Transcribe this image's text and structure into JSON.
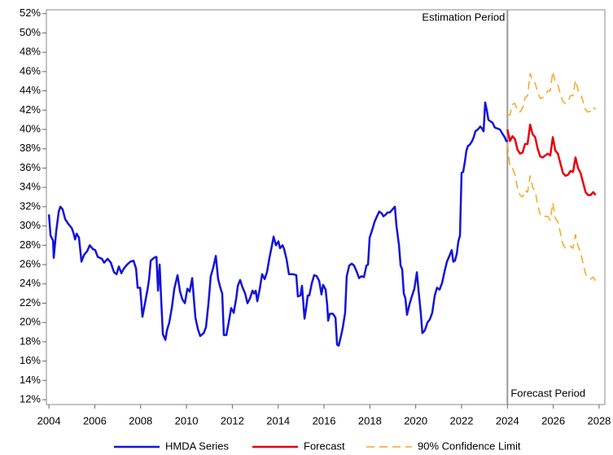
{
  "chart_data": {
    "type": "line",
    "xlim": [
      2003.89,
      2028.25
    ],
    "xticks": [
      2004,
      2006,
      2008,
      2010,
      2012,
      2014,
      2016,
      2018,
      2020,
      2022,
      2024,
      2026,
      2028
    ],
    "ylim": [
      11.5,
      52.4
    ],
    "yticks": [
      {
        "value": 12,
        "label": "12%"
      },
      {
        "value": 14,
        "label": "14%"
      },
      {
        "value": 16,
        "label": "16%"
      },
      {
        "value": 18,
        "label": "18%"
      },
      {
        "value": 20,
        "label": "20%"
      },
      {
        "value": 22,
        "label": "22%"
      },
      {
        "value": 24,
        "label": "24%"
      },
      {
        "value": 26,
        "label": "26%"
      },
      {
        "value": 28,
        "label": "28%"
      },
      {
        "value": 30,
        "label": "30%"
      },
      {
        "value": 32,
        "label": "32%"
      },
      {
        "value": 34,
        "label": "34%"
      },
      {
        "value": 36,
        "label": "36%"
      },
      {
        "value": 38,
        "label": "38%"
      },
      {
        "value": 40,
        "label": "40%"
      },
      {
        "value": 42,
        "label": "42%"
      },
      {
        "value": 44,
        "label": "44%"
      },
      {
        "value": 46,
        "label": "46%"
      },
      {
        "value": 48,
        "label": "48%"
      },
      {
        "value": 50,
        "label": "50%"
      },
      {
        "value": 52,
        "label": "52%"
      }
    ],
    "legend": "bottom",
    "divider_x": 2024,
    "annotations": [
      {
        "text": "Estimation Period",
        "x": 2024
      },
      {
        "text": "Forecast Period",
        "x": 2024
      }
    ],
    "series": [
      {
        "name": "HMDA Series",
        "color": "#1414d8",
        "x": [
          2004.0,
          2004.07,
          2004.18,
          2004.21,
          2004.32,
          2004.43,
          2004.5,
          2004.6,
          2004.71,
          2004.85,
          2004.99,
          2005.07,
          2005.14,
          2005.21,
          2005.31,
          2005.42,
          2005.53,
          2005.67,
          2005.78,
          2005.92,
          2006.02,
          2006.13,
          2006.31,
          2006.41,
          2006.56,
          2006.7,
          2006.84,
          2006.95,
          2007.05,
          2007.16,
          2007.27,
          2007.41,
          2007.55,
          2007.69,
          2007.8,
          2007.87,
          2007.98,
          2008.08,
          2008.19,
          2008.3,
          2008.37,
          2008.44,
          2008.58,
          2008.69,
          2008.76,
          2008.83,
          2008.9,
          2008.97,
          2009.08,
          2009.15,
          2009.25,
          2009.36,
          2009.47,
          2009.61,
          2009.72,
          2009.82,
          2009.93,
          2010.04,
          2010.14,
          2010.25,
          2010.32,
          2010.39,
          2010.5,
          2010.6,
          2010.75,
          2010.85,
          2010.96,
          2011.06,
          2011.17,
          2011.28,
          2011.38,
          2011.49,
          2011.56,
          2011.63,
          2011.74,
          2011.85,
          2011.95,
          2012.06,
          2012.17,
          2012.24,
          2012.34,
          2012.45,
          2012.56,
          2012.66,
          2012.77,
          2012.88,
          2012.95,
          2013.02,
          2013.09,
          2013.19,
          2013.3,
          2013.41,
          2013.51,
          2013.62,
          2013.73,
          2013.8,
          2013.9,
          2014.01,
          2014.08,
          2014.19,
          2014.26,
          2014.37,
          2014.47,
          2014.65,
          2014.79,
          2014.86,
          2014.97,
          2015.04,
          2015.15,
          2015.22,
          2015.29,
          2015.36,
          2015.47,
          2015.57,
          2015.68,
          2015.79,
          2015.89,
          2015.96,
          2016.07,
          2016.14,
          2016.18,
          2016.25,
          2016.39,
          2016.5,
          2016.57,
          2016.64,
          2016.74,
          2016.82,
          2016.92,
          2016.99,
          2017.1,
          2017.21,
          2017.31,
          2017.42,
          2017.53,
          2017.63,
          2017.74,
          2017.85,
          2017.92,
          2017.99,
          2018.09,
          2018.2,
          2018.31,
          2018.41,
          2018.52,
          2018.59,
          2018.7,
          2018.77,
          2018.87,
          2018.98,
          2019.09,
          2019.16,
          2019.27,
          2019.34,
          2019.41,
          2019.48,
          2019.55,
          2019.62,
          2019.73,
          2019.83,
          2019.94,
          2020.05,
          2020.12,
          2020.22,
          2020.29,
          2020.4,
          2020.51,
          2020.61,
          2020.72,
          2020.83,
          2020.93,
          2021.04,
          2021.15,
          2021.25,
          2021.36,
          2021.47,
          2021.57,
          2021.64,
          2021.71,
          2021.79,
          2021.86,
          2021.93,
          2022.0,
          2022.07,
          2022.14,
          2022.21,
          2022.28,
          2022.35,
          2022.46,
          2022.53,
          2022.6,
          2022.71,
          2022.82,
          2022.89,
          2022.96,
          2023.03,
          2023.1,
          2023.17,
          2023.28,
          2023.35,
          2023.45,
          2023.56,
          2023.67,
          2023.77,
          2023.88,
          2023.95,
          2024.02
        ],
        "values": [
          31.2,
          29.0,
          28.5,
          26.7,
          29.5,
          31.5,
          32.0,
          31.7,
          30.7,
          30.2,
          29.8,
          29.3,
          28.6,
          29.2,
          28.8,
          26.3,
          27.0,
          27.4,
          28.0,
          27.6,
          27.5,
          26.8,
          26.6,
          26.2,
          26.6,
          26.2,
          25.2,
          25.0,
          25.8,
          25.1,
          25.6,
          26.0,
          26.3,
          26.4,
          25.6,
          23.6,
          23.6,
          20.6,
          22.0,
          23.4,
          24.5,
          26.4,
          26.7,
          26.8,
          23.3,
          26.0,
          22.2,
          18.8,
          18.2,
          19.2,
          20.0,
          21.5,
          23.5,
          24.9,
          23.2,
          22.4,
          22.0,
          23.5,
          23.2,
          24.6,
          22.5,
          20.5,
          19.3,
          18.6,
          18.9,
          19.5,
          22.0,
          24.8,
          25.7,
          26.9,
          24.5,
          23.5,
          23.0,
          18.7,
          18.7,
          20.1,
          21.5,
          21.0,
          22.5,
          23.8,
          24.4,
          23.6,
          23.0,
          22.0,
          22.5,
          23.3,
          23.0,
          23.3,
          22.2,
          23.4,
          25.0,
          24.5,
          25.2,
          26.7,
          28.0,
          28.9,
          28.0,
          28.4,
          27.7,
          28.0,
          27.6,
          26.5,
          25.0,
          25.0,
          24.9,
          22.7,
          22.8,
          23.8,
          20.4,
          21.5,
          22.8,
          22.8,
          24.1,
          24.9,
          24.8,
          24.3,
          22.9,
          23.9,
          23.4,
          21.8,
          20.2,
          20.9,
          20.9,
          20.5,
          17.7,
          17.6,
          18.6,
          19.5,
          21.0,
          24.8,
          25.9,
          26.1,
          25.9,
          25.3,
          24.6,
          24.8,
          24.7,
          25.9,
          26.0,
          28.8,
          29.5,
          30.4,
          31.0,
          31.5,
          31.3,
          31.0,
          31.2,
          31.4,
          31.4,
          31.7,
          32.0,
          30.0,
          28.0,
          25.9,
          25.5,
          23.0,
          22.5,
          20.8,
          21.9,
          22.7,
          23.5,
          25.2,
          23.4,
          21.0,
          18.9,
          19.2,
          20.0,
          20.3,
          21.0,
          22.8,
          23.6,
          23.4,
          24.1,
          25.2,
          26.3,
          26.9,
          27.5,
          26.3,
          26.4,
          27.1,
          28.4,
          29.0,
          35.5,
          35.6,
          36.6,
          37.8,
          38.3,
          38.4,
          38.8,
          39.2,
          39.8,
          40.0,
          40.3,
          40.1,
          39.8,
          42.8,
          42.0,
          41.0,
          40.8,
          40.7,
          40.2,
          40.1,
          40.0,
          39.6,
          39.2,
          38.8,
          38.8
        ]
      },
      {
        "name": "Forecast",
        "color": "#e8000b",
        "x": [
          2024.0,
          2024.11,
          2024.22,
          2024.33,
          2024.44,
          2024.55,
          2024.66,
          2024.77,
          2024.88,
          2024.99,
          2025.1,
          2025.21,
          2025.32,
          2025.43,
          2025.54,
          2025.65,
          2025.76,
          2025.87,
          2025.98,
          2026.09,
          2026.2,
          2026.31,
          2026.42,
          2026.53,
          2026.64,
          2026.75,
          2026.86,
          2026.97,
          2027.08,
          2027.19,
          2027.3,
          2027.41,
          2027.52,
          2027.63,
          2027.74,
          2027.85
        ],
        "values": [
          40.0,
          38.8,
          39.3,
          39.0,
          37.9,
          37.5,
          37.6,
          38.5,
          38.5,
          40.5,
          39.5,
          39.2,
          38.0,
          37.2,
          37.1,
          37.3,
          37.5,
          37.3,
          39.2,
          37.8,
          37.5,
          36.5,
          35.5,
          35.2,
          35.3,
          35.7,
          35.6,
          37.1,
          36.0,
          35.5,
          34.5,
          33.5,
          33.2,
          33.2,
          33.5,
          33.2
        ]
      },
      {
        "name": "90% Confidence Limit",
        "color": "#f5a623",
        "dashed": true,
        "x": [
          2024.0,
          2024.11,
          2024.22,
          2024.33,
          2024.44,
          2024.55,
          2024.66,
          2024.77,
          2024.88,
          2024.99,
          2025.1,
          2025.21,
          2025.32,
          2025.43,
          2025.54,
          2025.65,
          2025.76,
          2025.87,
          2025.98,
          2026.09,
          2026.2,
          2026.31,
          2026.42,
          2026.53,
          2026.64,
          2026.75,
          2026.86,
          2026.97,
          2027.08,
          2027.19,
          2027.3,
          2027.41,
          2027.52,
          2027.63,
          2027.74,
          2027.85
        ],
        "upper": [
          41.5,
          41.5,
          42.6,
          42.7,
          41.9,
          41.8,
          42.2,
          43.3,
          43.5,
          45.8,
          45.0,
          44.8,
          43.8,
          43.2,
          43.3,
          43.6,
          44.0,
          44.0,
          46.0,
          44.8,
          44.6,
          43.7,
          42.9,
          42.7,
          42.9,
          43.5,
          43.5,
          45.1,
          44.1,
          43.7,
          42.9,
          42.0,
          41.8,
          41.9,
          42.3,
          42.1
        ],
        "lower": [
          38.5,
          36.1,
          36.0,
          35.3,
          33.9,
          33.2,
          33.0,
          33.7,
          33.5,
          35.2,
          34.0,
          33.6,
          32.2,
          31.2,
          30.9,
          31.0,
          31.0,
          30.6,
          32.4,
          30.8,
          30.4,
          29.3,
          28.1,
          27.7,
          27.7,
          27.9,
          27.7,
          29.1,
          27.9,
          27.3,
          26.1,
          25.0,
          24.6,
          24.5,
          24.7,
          24.3
        ]
      }
    ]
  }
}
